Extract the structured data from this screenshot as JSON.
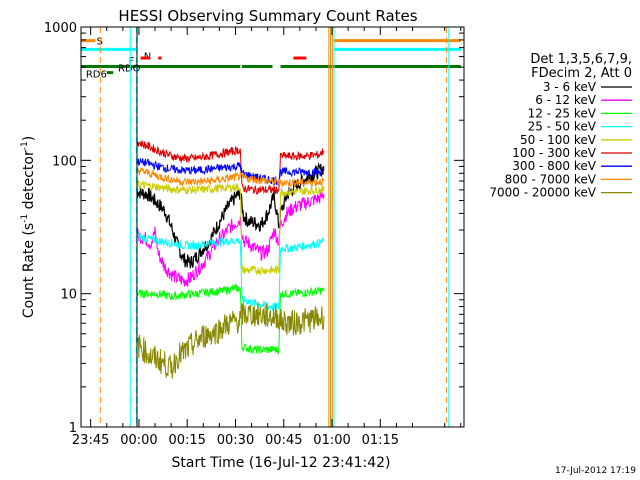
{
  "chart_data": {
    "type": "line",
    "title": "HESSI Observing Summary Count Rates",
    "xlabel": "Start Time (16-Jul-12 23:41:42)",
    "ylabel_parts": [
      "Count Rate (s",
      "-1",
      " detector",
      "-1",
      ")"
    ],
    "yscale": "log",
    "ylim": [
      1,
      1000
    ],
    "xlim_minutes": [
      -18,
      101
    ],
    "x_ticks": [
      {
        "m": -15,
        "label": "23:45"
      },
      {
        "m": 0,
        "label": "00:00"
      },
      {
        "m": 15,
        "label": "00:15"
      },
      {
        "m": 30,
        "label": "00:30"
      },
      {
        "m": 45,
        "label": "00:45"
      },
      {
        "m": 60,
        "label": "01:00"
      },
      {
        "m": 75,
        "label": "01:15"
      }
    ],
    "y_ticks": [
      {
        "v": 1,
        "label": "1"
      },
      {
        "v": 10,
        "label": "10"
      },
      {
        "v": 100,
        "label": "100"
      },
      {
        "v": 1000,
        "label": "1000"
      }
    ],
    "legend": {
      "header": [
        "Det 1,3,5,6,7,9,",
        "FDecim 2, Att 0"
      ],
      "placement": "right"
    },
    "series": [
      {
        "name": "3 - 6 keV",
        "color": "#000000",
        "points": [
          [
            -0.7,
            60
          ],
          [
            0,
            58
          ],
          [
            3,
            55
          ],
          [
            6,
            47
          ],
          [
            8,
            42
          ],
          [
            10,
            32
          ],
          [
            12,
            23
          ],
          [
            14,
            18
          ],
          [
            16,
            17
          ],
          [
            18,
            19
          ],
          [
            20,
            22
          ],
          [
            22,
            25
          ],
          [
            24,
            31
          ],
          [
            26,
            38
          ],
          [
            28,
            46
          ],
          [
            30,
            53
          ],
          [
            31.5,
            57
          ],
          [
            32.5,
            38
          ],
          [
            34,
            35
          ],
          [
            36,
            34
          ],
          [
            38,
            33
          ],
          [
            40,
            40
          ],
          [
            42,
            54
          ],
          [
            43.5,
            32
          ],
          [
            44,
            40
          ],
          [
            46,
            55
          ],
          [
            48,
            62
          ],
          [
            50,
            68
          ],
          [
            52,
            74
          ],
          [
            54,
            78
          ],
          [
            56,
            83
          ],
          [
            57.5,
            88
          ]
        ]
      },
      {
        "name": "6 - 12 keV",
        "color": "#ff00ff",
        "points": [
          [
            -0.7,
            28
          ],
          [
            0,
            27
          ],
          [
            2,
            26
          ],
          [
            4,
            23
          ],
          [
            5,
            30
          ],
          [
            6,
            20
          ],
          [
            8,
            16
          ],
          [
            10,
            14
          ],
          [
            12,
            13
          ],
          [
            14,
            12.5
          ],
          [
            16,
            13
          ],
          [
            18,
            15
          ],
          [
            20,
            17
          ],
          [
            22,
            20
          ],
          [
            24,
            24
          ],
          [
            26,
            27
          ],
          [
            28,
            31
          ],
          [
            30,
            34
          ],
          [
            31.5,
            36
          ],
          [
            32.5,
            25
          ],
          [
            34,
            24
          ],
          [
            36,
            22
          ],
          [
            38,
            20
          ],
          [
            40,
            21
          ],
          [
            42,
            30
          ],
          [
            43.5,
            24
          ],
          [
            44,
            33
          ],
          [
            46,
            40
          ],
          [
            48,
            44
          ],
          [
            50,
            46
          ],
          [
            52,
            48
          ],
          [
            54,
            50
          ],
          [
            56,
            52
          ],
          [
            57.5,
            55
          ]
        ]
      },
      {
        "name": "12 - 25 keV",
        "color": "#00ff00",
        "points": [
          [
            -0.7,
            10
          ],
          [
            2,
            10
          ],
          [
            6,
            10
          ],
          [
            10,
            9.5
          ],
          [
            14,
            9.8
          ],
          [
            18,
            10
          ],
          [
            22,
            10.3
          ],
          [
            26,
            10.5
          ],
          [
            30,
            11
          ],
          [
            31.5,
            11
          ],
          [
            32,
            4
          ],
          [
            36,
            3.8
          ],
          [
            40,
            3.8
          ],
          [
            43.5,
            3.8
          ],
          [
            44,
            10
          ],
          [
            48,
            10
          ],
          [
            52,
            10.2
          ],
          [
            56,
            10.5
          ],
          [
            57.5,
            10.5
          ]
        ]
      },
      {
        "name": "25 - 50 keV",
        "color": "#00ffff",
        "points": [
          [
            -0.7,
            27
          ],
          [
            2,
            26
          ],
          [
            6,
            25
          ],
          [
            10,
            24
          ],
          [
            14,
            23
          ],
          [
            18,
            23
          ],
          [
            22,
            24
          ],
          [
            26,
            24.5
          ],
          [
            30,
            25
          ],
          [
            31.5,
            25
          ],
          [
            32,
            9
          ],
          [
            36,
            8.5
          ],
          [
            40,
            8
          ],
          [
            43.5,
            8
          ],
          [
            44,
            22
          ],
          [
            48,
            22
          ],
          [
            52,
            23
          ],
          [
            56,
            24
          ],
          [
            57.5,
            25
          ]
        ]
      },
      {
        "name": "50 - 100 keV",
        "color": "#cccc00",
        "points": [
          [
            -0.7,
            66
          ],
          [
            2,
            65
          ],
          [
            6,
            63
          ],
          [
            10,
            61
          ],
          [
            14,
            60
          ],
          [
            18,
            60
          ],
          [
            22,
            61
          ],
          [
            26,
            62
          ],
          [
            30,
            63
          ],
          [
            31.5,
            63
          ],
          [
            32,
            15
          ],
          [
            36,
            15
          ],
          [
            40,
            15
          ],
          [
            43.5,
            15
          ],
          [
            44,
            58
          ],
          [
            48,
            58
          ],
          [
            52,
            59
          ],
          [
            56,
            60
          ],
          [
            57.5,
            60
          ]
        ]
      },
      {
        "name": "100 - 300 keV",
        "color": "#dd0000",
        "points": [
          [
            -0.7,
            138
          ],
          [
            2,
            130
          ],
          [
            6,
            118
          ],
          [
            10,
            108
          ],
          [
            14,
            103
          ],
          [
            18,
            104
          ],
          [
            22,
            108
          ],
          [
            26,
            113
          ],
          [
            30,
            118
          ],
          [
            31.5,
            120
          ],
          [
            32,
            62
          ],
          [
            36,
            60
          ],
          [
            40,
            60
          ],
          [
            43.5,
            60
          ],
          [
            44,
            108
          ],
          [
            48,
            107
          ],
          [
            52,
            108
          ],
          [
            56,
            110
          ],
          [
            57.5,
            118
          ]
        ]
      },
      {
        "name": "300 - 800 keV",
        "color": "#0000ff",
        "points": [
          [
            -0.7,
            98
          ],
          [
            2,
            96
          ],
          [
            6,
            90
          ],
          [
            10,
            86
          ],
          [
            14,
            84
          ],
          [
            18,
            84
          ],
          [
            22,
            86
          ],
          [
            26,
            88
          ],
          [
            30,
            90
          ],
          [
            31.5,
            92
          ],
          [
            32,
            80
          ],
          [
            36,
            75
          ],
          [
            40,
            72
          ],
          [
            43.5,
            70
          ],
          [
            44,
            82
          ],
          [
            48,
            82
          ],
          [
            52,
            82
          ],
          [
            56,
            82
          ],
          [
            57.5,
            84
          ]
        ]
      },
      {
        "name": "800 - 7000 keV",
        "color": "#ff8800",
        "points": [
          [
            -0.7,
            84
          ],
          [
            2,
            82
          ],
          [
            6,
            76
          ],
          [
            10,
            72
          ],
          [
            14,
            69
          ],
          [
            18,
            69
          ],
          [
            22,
            70
          ],
          [
            26,
            72
          ],
          [
            30,
            75
          ],
          [
            31.5,
            76
          ],
          [
            32,
            74
          ],
          [
            36,
            72
          ],
          [
            40,
            70
          ],
          [
            43.5,
            68
          ],
          [
            44,
            68
          ],
          [
            48,
            68
          ],
          [
            52,
            68
          ],
          [
            56,
            69
          ],
          [
            57.5,
            70
          ]
        ]
      },
      {
        "name": "7000 - 20000 keV",
        "color": "#888800",
        "points": [
          [
            -0.7,
            4.2
          ],
          [
            1,
            3.9
          ],
          [
            4,
            3.3
          ],
          [
            6,
            3.2
          ],
          [
            8,
            3.0
          ],
          [
            10,
            2.7
          ],
          [
            12,
            3.4
          ],
          [
            14,
            3.6
          ],
          [
            16,
            4.0
          ],
          [
            18,
            4.4
          ],
          [
            20,
            4.8
          ],
          [
            22,
            5.0
          ],
          [
            24,
            5.2
          ],
          [
            26,
            5.6
          ],
          [
            28,
            6.0
          ],
          [
            30,
            6.2
          ],
          [
            31.5,
            6.3
          ],
          [
            32,
            7.0
          ],
          [
            36,
            7.0
          ],
          [
            40,
            6.8
          ],
          [
            43.5,
            6.7
          ],
          [
            44,
            6.2
          ],
          [
            48,
            6.0
          ],
          [
            52,
            6.3
          ],
          [
            56,
            6.5
          ],
          [
            57.5,
            6.8
          ]
        ]
      }
    ],
    "status_flags": [
      {
        "label": "S",
        "color": "#ff8800",
        "level": 790,
        "segments": [
          [
            -18,
            -13.5
          ],
          [
            60.5,
            100
          ]
        ]
      },
      {
        "label": "N",
        "color": "#00ffff",
        "level": 680,
        "segments": [
          [
            -18,
            -0.8
          ],
          [
            60.5,
            100
          ]
        ]
      },
      {
        "label": "F",
        "color": "#ff0000",
        "level": 585,
        "segments": [
          [
            0.5,
            3.5
          ],
          [
            6,
            7
          ],
          [
            48,
            52
          ]
        ]
      },
      {
        "label": "RDO",
        "color": "#007700",
        "level": 505,
        "segments": [
          [
            -18,
            31.5
          ],
          [
            32,
            41.5
          ],
          [
            44,
            100
          ]
        ]
      },
      {
        "label": "RD6",
        "color": "#007700",
        "level": 455,
        "segments": [
          [
            -10,
            -8
          ]
        ]
      }
    ],
    "vertical_markers": [
      {
        "m": -12,
        "color": "#ff8800",
        "dashed": true
      },
      {
        "m": -2.7,
        "color": "#00ffff",
        "dashed": false
      },
      {
        "m": -0.8,
        "color": "#00ffff",
        "dashed": true
      },
      {
        "m": -0.6,
        "color": "#000000",
        "dashed": false
      },
      {
        "m": 59,
        "color": "#ff8800",
        "dashed": false
      },
      {
        "m": 59.6,
        "color": "#888800",
        "dashed": false
      },
      {
        "m": 60.1,
        "color": "#ff8800",
        "dashed": false
      },
      {
        "m": 60.6,
        "color": "#00ffff",
        "dashed": false
      },
      {
        "m": 95.6,
        "color": "#ff8800",
        "dashed": true
      },
      {
        "m": 96.3,
        "color": "#00ffff",
        "dashed": false
      }
    ]
  },
  "footer": {
    "timestamp": "17-Jul-2012 17:19"
  }
}
